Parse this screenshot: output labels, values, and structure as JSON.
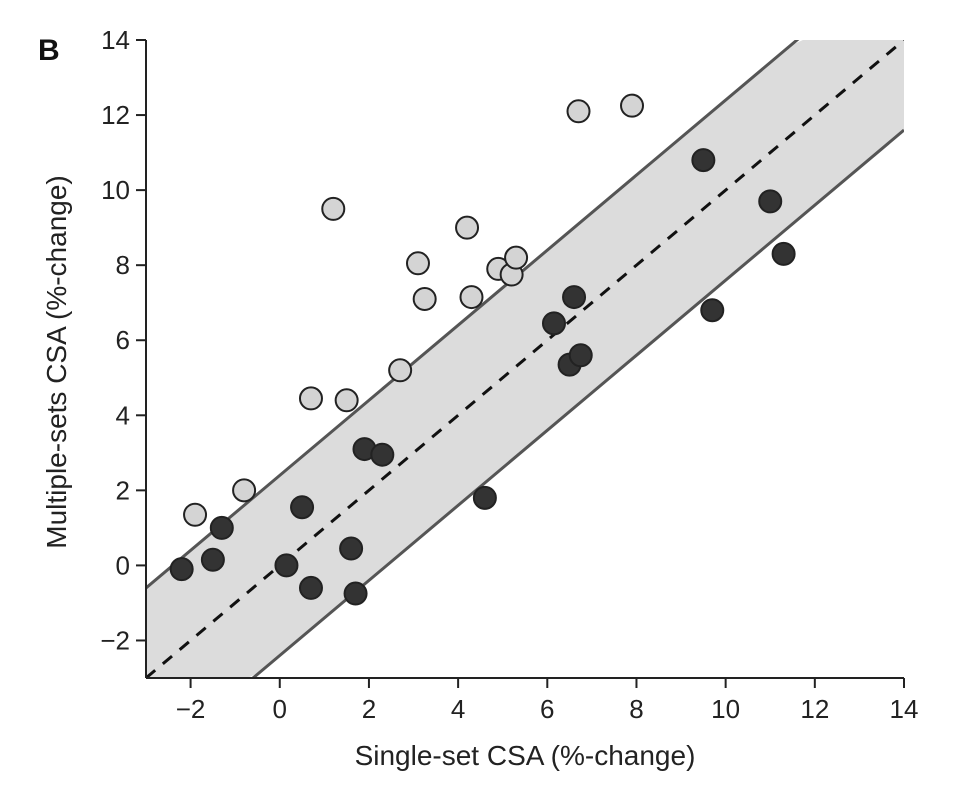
{
  "panel_label": "B",
  "colors": {
    "band_fill": "#dcdcdc",
    "boundary_line": "#555555",
    "identity_line": "#111111",
    "light_point_fill": "#d4d4d4",
    "dark_point_fill": "#333333",
    "point_stroke": "#222222",
    "axis": "#222222"
  },
  "chart_data": {
    "type": "scatter",
    "xlabel": "Single-set CSA (%-change)",
    "ylabel": "Multiple-sets CSA (%-change)",
    "xlim": [
      -3,
      14
    ],
    "ylim": [
      -3,
      14
    ],
    "xticks": [
      -2,
      0,
      2,
      4,
      6,
      8,
      10,
      12,
      14
    ],
    "yticks": [
      -2,
      0,
      2,
      4,
      6,
      8,
      10,
      12,
      14
    ],
    "xtick_labels": [
      "−2",
      "0",
      "2",
      "4",
      "6",
      "8",
      "10",
      "12",
      "14"
    ],
    "ytick_labels": [
      "−2",
      "0",
      "2",
      "4",
      "6",
      "8",
      "10",
      "12",
      "14"
    ],
    "grid": false,
    "reference_lines": {
      "identity": {
        "slope": 1,
        "intercept": 0,
        "style": "dashed"
      },
      "upper": {
        "slope": 1,
        "intercept": 2.4,
        "style": "solid"
      },
      "lower": {
        "slope": 1,
        "intercept": -2.4,
        "style": "solid"
      }
    },
    "series": [
      {
        "fill": "light",
        "points": [
          {
            "x": -1.9,
            "y": 1.35
          },
          {
            "x": -0.8,
            "y": 2.0
          },
          {
            "x": 0.7,
            "y": 4.45
          },
          {
            "x": 1.2,
            "y": 9.5
          },
          {
            "x": 1.5,
            "y": 4.4
          },
          {
            "x": 2.7,
            "y": 5.2
          },
          {
            "x": 3.1,
            "y": 8.05
          },
          {
            "x": 3.25,
            "y": 7.1
          },
          {
            "x": 4.2,
            "y": 9.0
          },
          {
            "x": 4.3,
            "y": 7.15
          },
          {
            "x": 4.9,
            "y": 7.9
          },
          {
            "x": 5.2,
            "y": 7.75
          },
          {
            "x": 5.3,
            "y": 8.2
          },
          {
            "x": 6.7,
            "y": 12.1
          },
          {
            "x": 7.9,
            "y": 12.25
          }
        ]
      },
      {
        "fill": "dark",
        "points": [
          {
            "x": -2.2,
            "y": -0.1
          },
          {
            "x": -1.5,
            "y": 0.15
          },
          {
            "x": -1.3,
            "y": 1.0
          },
          {
            "x": 0.15,
            "y": 0.0
          },
          {
            "x": 0.5,
            "y": 1.55
          },
          {
            "x": 0.7,
            "y": -0.6
          },
          {
            "x": 1.6,
            "y": 0.45
          },
          {
            "x": 1.7,
            "y": -0.75
          },
          {
            "x": 1.9,
            "y": 3.1
          },
          {
            "x": 2.3,
            "y": 2.95
          },
          {
            "x": 4.6,
            "y": 1.8
          },
          {
            "x": 6.15,
            "y": 6.45
          },
          {
            "x": 6.5,
            "y": 5.35
          },
          {
            "x": 6.6,
            "y": 7.15
          },
          {
            "x": 6.75,
            "y": 5.6
          },
          {
            "x": 9.5,
            "y": 10.8
          },
          {
            "x": 9.7,
            "y": 6.8
          },
          {
            "x": 11.0,
            "y": 9.7
          },
          {
            "x": 11.3,
            "y": 8.3
          }
        ]
      }
    ]
  }
}
